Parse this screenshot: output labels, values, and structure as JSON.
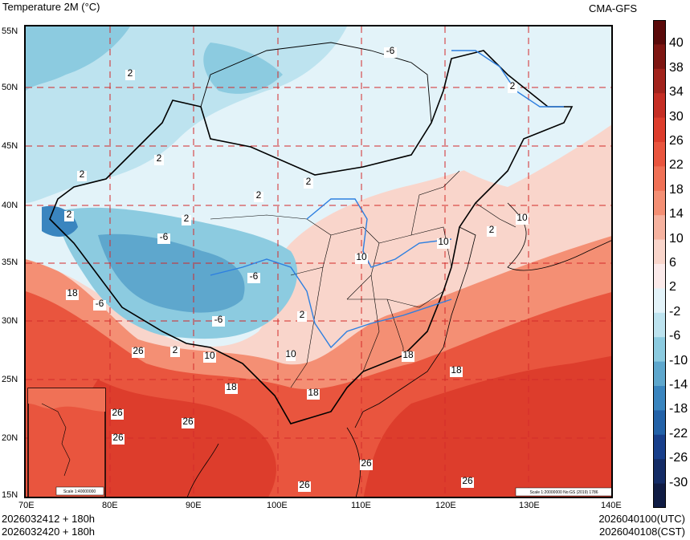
{
  "header": {
    "title": "Temperature  2M (°C)",
    "model": "CMA-GFS"
  },
  "map": {
    "lat_labels": [
      "55N",
      "50N",
      "45N",
      "40N",
      "35N",
      "30N",
      "25N",
      "20N",
      "15N"
    ],
    "lon_labels": [
      "70E",
      "80E",
      "90E",
      "100E",
      "110E",
      "120E",
      "130E",
      "140E"
    ],
    "contour_labels": [
      "-6",
      "2",
      "2",
      "2",
      "2",
      "2",
      "-6",
      "-6",
      "2",
      "-6",
      "18",
      "-6",
      "26",
      "2",
      "10",
      "18",
      "26",
      "26",
      "26",
      "26",
      "18",
      "18",
      "18",
      "10",
      "10",
      "10",
      "2",
      "10",
      "26",
      "26",
      "2",
      "2",
      "2"
    ],
    "inset_scale": "Scale 1:40000000",
    "main_scale": "Scale 1:20000000 No:GS (2019) 1786"
  },
  "colorbar": {
    "labels": [
      "40",
      "38",
      "34",
      "30",
      "26",
      "22",
      "18",
      "14",
      "10",
      "6",
      "2",
      "-2",
      "-6",
      "-10",
      "-14",
      "-18",
      "-22",
      "-26",
      "-30"
    ],
    "colors": [
      "#5a0a0a",
      "#7e1612",
      "#a2231c",
      "#c52e24",
      "#dd3d2c",
      "#e9553e",
      "#f07156",
      "#f48f74",
      "#f6b29f",
      "#f9d5cb",
      "#fbeaea",
      "#e3f3f9",
      "#bde3ef",
      "#8ccbe0",
      "#5ea7cd",
      "#3a85bf",
      "#2362a8",
      "#183f8b",
      "#142c66",
      "#101c44"
    ]
  },
  "footer": {
    "init_utc": "2026032412 + 180h",
    "init_cst": "2026032420 + 180h",
    "valid_utc": "2026040100(UTC)",
    "valid_cst": "2026040108(CST)"
  }
}
